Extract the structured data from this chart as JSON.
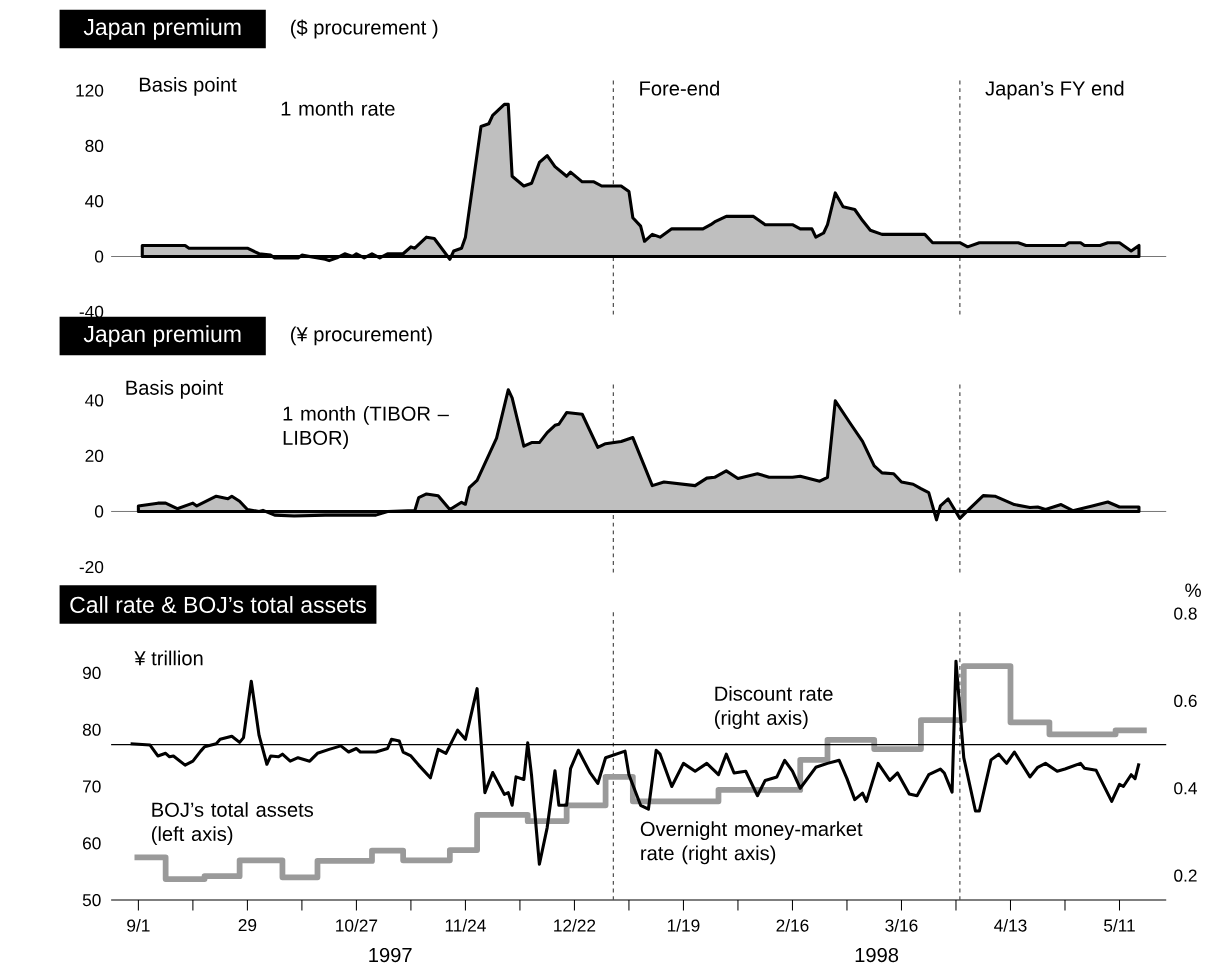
{
  "chart_data": [
    {
      "type": "area",
      "title": "Japan premium",
      "subtitle": "($ procurement )",
      "ylabel": "Basis point",
      "xlim": [
        "1997-08-25",
        "1998-05-23"
      ],
      "ylim": [
        -42,
        130
      ],
      "yticks": [
        -40,
        0,
        40,
        80,
        120
      ],
      "tick_labels": "y",
      "ref_lines": [
        {
          "axis": "x",
          "value": "1998-01-01",
          "label": "Fore-end",
          "color": "#555555",
          "line_style": "dashed"
        },
        {
          "axis": "x",
          "value": "1998-03-31",
          "label": "Japan’s FY end",
          "color": "#555555",
          "line_style": "dashed"
        }
      ],
      "series": [
        {
          "name": "1 month rate",
          "color": "#000000",
          "x": [
            "1997-09-02",
            "1997-09-13",
            "1997-09-14",
            "1997-09-29",
            "1997-10-02",
            "1997-10-05",
            "1997-10-06",
            "1997-10-12",
            "1997-10-13",
            "1997-10-19",
            "1997-10-20",
            "1997-10-22",
            "1997-10-24",
            "1997-10-26",
            "1997-10-27",
            "1997-10-29",
            "1997-10-31",
            "1997-11-02",
            "1997-11-04",
            "1997-11-08",
            "1997-11-10",
            "1997-11-11",
            "1997-11-14",
            "1997-11-16",
            "1997-11-20",
            "1997-11-21",
            "1997-11-23",
            "1997-11-24",
            "1997-11-28",
            "1997-11-30",
            "1997-12-01",
            "1997-12-04",
            "1997-12-05",
            "1997-12-06",
            "1997-12-09",
            "1997-12-11",
            "1997-12-13",
            "1997-12-15",
            "1997-12-17",
            "1997-12-20",
            "1997-12-21",
            "1997-12-24",
            "1997-12-27",
            "1997-12-29",
            "1998-01-03",
            "1998-01-05",
            "1998-01-06",
            "1998-01-08",
            "1998-01-09",
            "1998-01-11",
            "1998-01-13",
            "1998-01-16",
            "1998-01-24",
            "1998-01-26",
            "1998-01-27",
            "1998-01-30",
            "1998-02-06",
            "1998-02-09",
            "1998-02-16",
            "1998-02-18",
            "1998-02-21",
            "1998-02-22",
            "1998-02-24",
            "1998-02-25",
            "1998-02-27",
            "1998-03-01",
            "1998-03-04",
            "1998-03-06",
            "1998-03-08",
            "1998-03-11",
            "1998-03-22",
            "1998-03-24",
            "1998-03-31",
            "1998-04-02",
            "1998-04-05",
            "1998-04-15",
            "1998-04-17",
            "1998-04-27",
            "1998-04-28",
            "1998-05-01",
            "1998-05-02",
            "1998-05-06",
            "1998-05-08",
            "1998-05-11",
            "1998-05-14",
            "1998-05-16"
          ],
          "values": [
            8,
            8,
            6,
            6,
            2,
            1,
            -1,
            -1,
            1,
            -2,
            -3,
            -1,
            2,
            0,
            2,
            -1,
            2,
            -1,
            2,
            2,
            7,
            6,
            14,
            13,
            -2,
            4,
            6,
            14,
            94,
            96,
            102,
            110,
            110,
            58,
            51,
            53,
            68,
            73,
            65,
            58,
            61,
            54,
            54,
            51,
            51,
            47,
            28,
            22,
            11,
            16,
            14,
            20,
            20,
            23,
            25,
            29,
            29,
            23,
            23,
            20,
            20,
            14,
            17,
            23,
            46,
            36,
            34,
            26,
            19,
            16,
            16,
            10,
            10,
            7,
            10,
            10,
            8,
            8,
            10,
            10,
            8,
            8,
            10,
            10,
            4,
            8
          ]
        }
      ]
    },
    {
      "type": "area",
      "title": "Japan premium",
      "subtitle": "(¥ procurement)",
      "ylabel": "Basis point",
      "xlim": [
        "1997-08-25",
        "1998-05-23"
      ],
      "ylim": [
        -22,
        46
      ],
      "yticks": [
        -20,
        0,
        20,
        40
      ],
      "tick_labels": "y",
      "ref_lines": [
        {
          "axis": "x",
          "value": "1998-01-01",
          "color": "#555555",
          "line_style": "dashed"
        },
        {
          "axis": "x",
          "value": "1998-03-31",
          "color": "#555555",
          "line_style": "dashed"
        }
      ],
      "series": [
        {
          "name": "1 month (TIBOR –LIBOR)",
          "color": "#000000",
          "x": [
            "1997-09-01",
            "1997-09-06",
            "1997-09-08",
            "1997-09-11",
            "1997-09-15",
            "1997-09-16",
            "1997-09-21",
            "1997-09-24",
            "1997-09-25",
            "1997-09-27",
            "1997-09-29",
            "1997-10-02",
            "1997-10-03",
            "1997-10-06",
            "1997-10-11",
            "1997-10-19",
            "1997-11-01",
            "1997-11-04",
            "1997-11-11",
            "1997-11-12",
            "1997-11-14",
            "1997-11-17",
            "1997-11-20",
            "1997-11-23",
            "1997-11-24",
            "1997-11-25",
            "1997-11-27",
            "1997-12-02",
            "1997-12-05",
            "1997-12-06",
            "1997-12-09",
            "1997-12-11",
            "1997-12-13",
            "1997-12-15",
            "1997-12-17",
            "1997-12-18",
            "1997-12-20",
            "1997-12-24",
            "1997-12-28",
            "1997-12-30",
            "1998-01-03",
            "1998-01-06",
            "1998-01-11",
            "1998-01-14",
            "1998-01-22",
            "1998-01-25",
            "1998-01-27",
            "1998-01-30",
            "1998-02-02",
            "1998-02-07",
            "1998-02-10",
            "1998-02-16",
            "1998-02-18",
            "1998-02-23",
            "1998-02-25",
            "1998-02-27",
            "1998-03-03",
            "1998-03-06",
            "1998-03-09",
            "1998-03-11",
            "1998-03-14",
            "1998-03-16",
            "1998-03-19",
            "1998-03-21",
            "1998-03-23",
            "1998-03-25",
            "1998-03-26",
            "1998-03-28",
            "1998-03-31",
            "1998-04-02",
            "1998-04-06",
            "1998-04-09",
            "1998-04-14",
            "1998-04-18",
            "1998-04-20",
            "1998-04-22",
            "1998-04-26",
            "1998-04-29",
            "1998-05-04",
            "1998-05-08",
            "1998-05-11",
            "1998-05-16"
          ],
          "values": [
            2,
            3,
            3,
            1,
            3,
            2,
            5.5,
            4.6,
            5.5,
            3.7,
            0.7,
            0,
            0.4,
            -1.3,
            -1.6,
            -1.3,
            -1.3,
            0,
            0.3,
            5,
            6.3,
            5.7,
            0.7,
            3.3,
            2.6,
            8.6,
            11.2,
            26.4,
            43.8,
            40.9,
            23.5,
            24.8,
            24.8,
            28.4,
            31,
            31.4,
            35.6,
            35,
            23.1,
            24.4,
            25.2,
            26.6,
            9.3,
            10.6,
            9.3,
            12,
            12.3,
            14.6,
            11.9,
            13.6,
            12.3,
            12.3,
            12.7,
            10.9,
            12.3,
            39.8,
            31.4,
            25.2,
            16.4,
            13.9,
            13.6,
            10.6,
            9.8,
            8.2,
            6.8,
            -3,
            2,
            4.5,
            -2.5,
            0.3,
            5.7,
            5.5,
            2.5,
            1.4,
            1.6,
            0.7,
            2.5,
            0.3,
            2,
            3.4,
            1.6,
            1.6
          ]
        }
      ]
    },
    {
      "type": "line",
      "title": "Call rate & BOJ’s total assets",
      "ylabel": "¥ trillion",
      "y2label": "%",
      "xlim": [
        "1997-08-25",
        "1998-05-23"
      ],
      "ylim": [
        50,
        101
      ],
      "yticks": [
        50,
        60,
        70,
        80,
        90
      ],
      "y2lim": [
        0.144,
        0.807
      ],
      "y2ticks": [
        0.2,
        0.4,
        0.6,
        0.8
      ],
      "xticks": [
        {
          "value": "1997-09-01",
          "label": "9/1"
        },
        {
          "value": "1997-09-15",
          "label": null
        },
        {
          "value": "1997-09-29",
          "label": "29"
        },
        {
          "value": "1997-10-13",
          "label": null
        },
        {
          "value": "1997-10-27",
          "label": "10/27"
        },
        {
          "value": "1997-11-10",
          "label": null
        },
        {
          "value": "1997-11-24",
          "label": "11/24"
        },
        {
          "value": "1997-12-08",
          "label": null
        },
        {
          "value": "1997-12-22",
          "label": "12/22"
        },
        {
          "value": "1998-01-05",
          "label": null
        },
        {
          "value": "1998-01-19",
          "label": "1/19"
        },
        {
          "value": "1998-02-02",
          "label": null
        },
        {
          "value": "1998-02-16",
          "label": "2/16"
        },
        {
          "value": "1998-03-02",
          "label": null
        },
        {
          "value": "1998-03-16",
          "label": "3/16"
        },
        {
          "value": "1998-03-30",
          "label": null
        },
        {
          "value": "1998-04-13",
          "label": "4/13"
        },
        {
          "value": "1998-04-27",
          "label": null
        },
        {
          "value": "1998-05-11",
          "label": "5/11"
        }
      ],
      "annotations": [
        "1997",
        "1998"
      ],
      "ref_lines": [
        {
          "axis": "x",
          "value": "1998-01-01",
          "color": "#555555",
          "line_style": "dashed"
        },
        {
          "axis": "x",
          "value": "1998-03-31",
          "color": "#555555",
          "line_style": "dashed"
        },
        {
          "axis": "y2",
          "value": 0.5,
          "label": "Discount rate (right axis)",
          "color": "#000000",
          "line_style": "solid"
        }
      ],
      "series": [
        {
          "name": "BOJ’s total assets (left axis)",
          "type": "step",
          "color": "#9a9a9a",
          "x": [
            "1997-08-31",
            "1997-09-08",
            "1997-09-18",
            "1997-09-27",
            "1997-10-08",
            "1997-10-17",
            "1997-10-31",
            "1997-11-08",
            "1997-11-20",
            "1997-11-27",
            "1997-12-10",
            "1997-12-20",
            "1997-12-30",
            "1998-01-06",
            "1998-01-28",
            "1998-02-18",
            "1998-02-25",
            "1998-03-09",
            "1998-03-21",
            "1998-04-01",
            "1998-04-13",
            "1998-04-23",
            "1998-05-10",
            "1998-05-18"
          ],
          "values": [
            57.5,
            53.7,
            54.2,
            57,
            54,
            56.9,
            58.7,
            57,
            58.8,
            65,
            63.9,
            66.7,
            71.7,
            67.4,
            69.4,
            74.7,
            78.2,
            76.6,
            81.7,
            91.2,
            81.3,
            79.2,
            79.9,
            79.9
          ]
        },
        {
          "name": "Overnight money-market rate (right axis)",
          "axis": "y2",
          "color": "#000000",
          "x": [
            "1997-08-30",
            "1997-09-04",
            "1997-09-06",
            "1997-09-08",
            "1997-09-09",
            "1997-09-10",
            "1997-09-13",
            "1997-09-15",
            "1997-09-17",
            "1997-09-18",
            "1997-09-21",
            "1997-09-22",
            "1997-09-25",
            "1997-09-27",
            "1997-09-28",
            "1997-09-30",
            "1997-10-02",
            "1997-10-04",
            "1997-10-05",
            "1997-10-07",
            "1997-10-08",
            "1997-10-10",
            "1997-10-12",
            "1997-10-15",
            "1997-10-17",
            "1997-10-20",
            "1997-10-23",
            "1997-10-25",
            "1997-10-27",
            "1997-10-28",
            "1997-11-01",
            "1997-11-04",
            "1997-11-05",
            "1997-11-07",
            "1997-11-08",
            "1997-11-10",
            "1997-11-12",
            "1997-11-15",
            "1997-11-17",
            "1997-11-19",
            "1997-11-22",
            "1997-11-24",
            "1997-11-27",
            "1997-11-29",
            "1997-12-01",
            "1997-12-04",
            "1997-12-05",
            "1997-12-06",
            "1997-12-07",
            "1997-12-09",
            "1997-12-10",
            "1997-12-11",
            "1997-12-13",
            "1997-12-15",
            "1997-12-17",
            "1997-12-18",
            "1997-12-20",
            "1997-12-21",
            "1997-12-23",
            "1997-12-26",
            "1997-12-28",
            "1997-12-30",
            "1998-01-04",
            "1998-01-05",
            "1998-01-08",
            "1998-01-10",
            "1998-01-12",
            "1998-01-13",
            "1998-01-16",
            "1998-01-19",
            "1998-01-22",
            "1998-01-25",
            "1998-01-28",
            "1998-01-30",
            "1998-02-01",
            "1998-02-04",
            "1998-02-07",
            "1998-02-09",
            "1998-02-12",
            "1998-02-14",
            "1998-02-16",
            "1998-02-18",
            "1998-02-22",
            "1998-02-25",
            "1998-02-28",
            "1998-03-02",
            "1998-03-04",
            "1998-03-06",
            "1998-03-07",
            "1998-03-10",
            "1998-03-13",
            "1998-03-15",
            "1998-03-18",
            "1998-03-20",
            "1998-03-23",
            "1998-03-26",
            "1998-03-27",
            "1998-03-29",
            "1998-03-30",
            "1998-04-01",
            "1998-04-04",
            "1998-04-05",
            "1998-04-08",
            "1998-04-10",
            "1998-04-12",
            "1998-04-14",
            "1998-04-18",
            "1998-04-20",
            "1998-04-22",
            "1998-04-25",
            "1998-04-27",
            "1998-05-01",
            "1998-05-02",
            "1998-05-05",
            "1998-05-09",
            "1998-05-11",
            "1998-05-12",
            "1998-05-14",
            "1998-05-15",
            "1998-05-16"
          ],
          "values": [
            0.502,
            0.499,
            0.474,
            0.48,
            0.472,
            0.474,
            0.453,
            0.462,
            0.485,
            0.495,
            0.502,
            0.512,
            0.519,
            0.505,
            0.516,
            0.645,
            0.521,
            0.455,
            0.474,
            0.472,
            0.478,
            0.462,
            0.47,
            0.462,
            0.48,
            0.489,
            0.497,
            0.483,
            0.491,
            0.483,
            0.483,
            0.491,
            0.512,
            0.508,
            0.483,
            0.474,
            0.453,
            0.424,
            0.489,
            0.48,
            0.533,
            0.512,
            0.628,
            0.39,
            0.436,
            0.386,
            0.39,
            0.361,
            0.426,
            0.42,
            0.504,
            0.428,
            0.226,
            0.31,
            0.44,
            0.361,
            0.361,
            0.445,
            0.487,
            0.436,
            0.411,
            0.47,
            0.485,
            0.431,
            0.361,
            0.352,
            0.487,
            0.478,
            0.404,
            0.457,
            0.439,
            0.457,
            0.431,
            0.478,
            0.435,
            0.439,
            0.383,
            0.418,
            0.426,
            0.464,
            0.439,
            0.4,
            0.448,
            0.457,
            0.464,
            0.422,
            0.374,
            0.389,
            0.37,
            0.457,
            0.418,
            0.435,
            0.387,
            0.383,
            0.431,
            0.444,
            0.435,
            0.391,
            0.691,
            0.47,
            0.348,
            0.348,
            0.465,
            0.478,
            0.457,
            0.483,
            0.426,
            0.448,
            0.457,
            0.439,
            0.444,
            0.457,
            0.446,
            0.441,
            0.37,
            0.409,
            0.404,
            0.431,
            0.422,
            0.457
          ]
        }
      ]
    }
  ]
}
